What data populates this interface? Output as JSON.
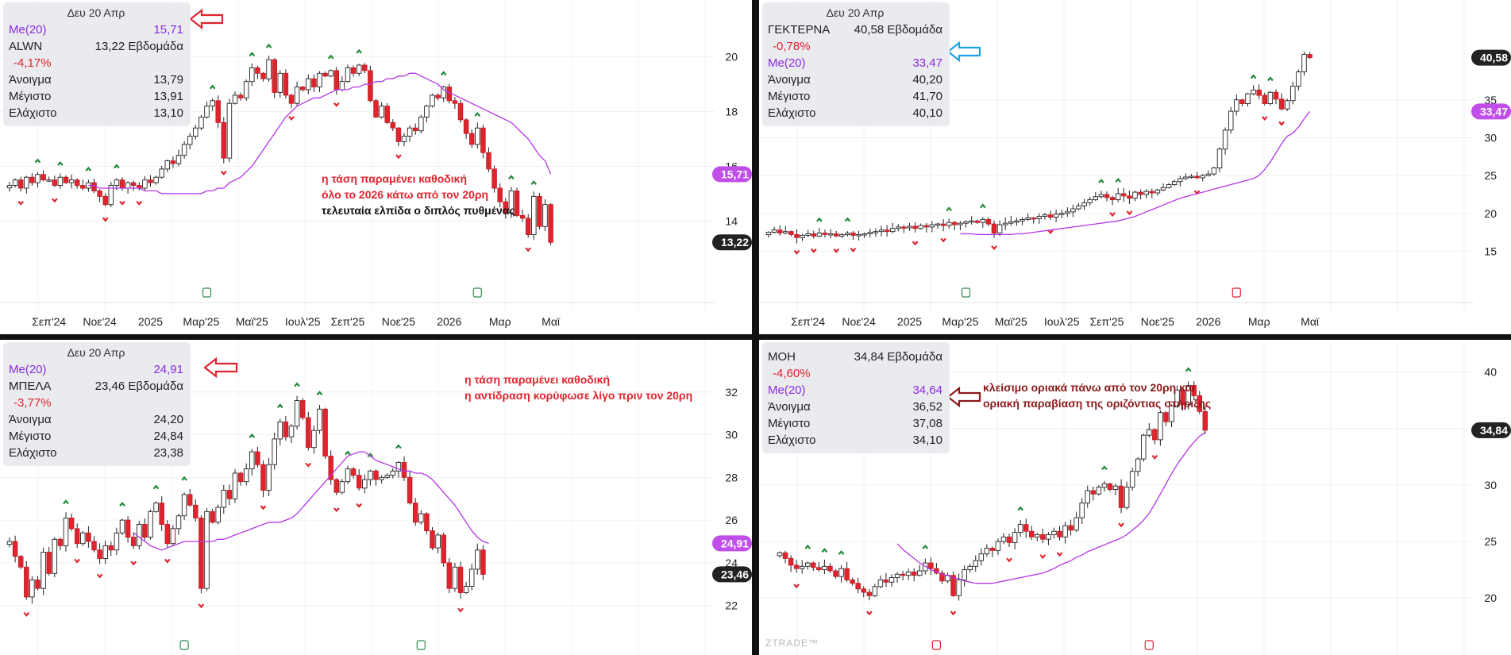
{
  "panels": [
    {
      "date": "Δευ 20 Απρ",
      "symbol": "ALWN",
      "price": "13,22",
      "period": "Εβδομάδα",
      "change": "-4,17%",
      "ma_label": "Me(20)",
      "ma_value": "15,71",
      "open_label": "Άνοιγμα",
      "open": "13,79",
      "high_label": "Μέγιστο",
      "high": "13,91",
      "low_label": "Ελάχιστο",
      "low": "13,10",
      "ma_first": true,
      "arrow_color": "#e0242e",
      "notes": [
        {
          "text": "η τάση παραμένει καθοδική",
          "color": "#e0242e"
        },
        {
          "text": "όλο το 2026 κάτω από τον 20ρη",
          "color": "#e0242e"
        },
        {
          "text": "τελευταία ελπίδα ο διπλός πυθμένας",
          "color": "#111111"
        }
      ],
      "price_tag": "13,22",
      "ma_tag": "15,71"
    },
    {
      "date": "Δευ 20 Απρ",
      "symbol": "ΓΕΚΤΕΡΝΑ",
      "price": "40,58",
      "period": "Εβδομάδα",
      "change": "-0,78%",
      "ma_label": "Me(20)",
      "ma_value": "33,47",
      "open_label": "Άνοιγμα",
      "open": "40,20",
      "high_label": "Μέγιστο",
      "high": "41,70",
      "low_label": "Ελάχιστο",
      "low": "40,10",
      "ma_first": false,
      "arrow_color": "#1aa3e8",
      "notes": [],
      "price_tag": "40,58",
      "ma_tag": "33,47"
    },
    {
      "date": "Δευ 20 Απρ",
      "symbol": "ΜΠΕΛΑ",
      "price": "23,46",
      "period": "Εβδομάδα",
      "change": "-3,77%",
      "ma_label": "Me(20)",
      "ma_value": "24,91",
      "open_label": "Άνοιγμα",
      "open": "24,20",
      "high_label": "Μέγιστο",
      "high": "24,84",
      "low_label": "Ελάχιστο",
      "low": "23,38",
      "ma_first": true,
      "arrow_color": "#e0242e",
      "notes": [
        {
          "text": "η τάση παραμένει καθοδική",
          "color": "#e0242e"
        },
        {
          "text": "η αντίδραση κορύφωσε λίγο πριν τον 20ρη",
          "color": "#e0242e"
        }
      ],
      "price_tag": "23,46",
      "ma_tag": "24,91"
    },
    {
      "date": "",
      "symbol": "ΜΟΗ",
      "price": "34,84",
      "period": "Εβδομάδα",
      "change": "-4,60%",
      "ma_label": "Me(20)",
      "ma_value": "34,64",
      "open_label": "Άνοιγμα",
      "open": "36,52",
      "high_label": "Μέγιστο",
      "high": "37,08",
      "low_label": "Ελάχιστο",
      "low": "34,10",
      "ma_first": false,
      "arrow_color": "#8b1a1a",
      "notes": [
        {
          "text": "κλείσιμο οριακά πάνω από τον 20ρη και",
          "color": "#8b1a1a"
        },
        {
          "text": "οριακή παραβίαση της οριζόντιας στήριξης",
          "color": "#8b1a1a"
        }
      ],
      "price_tag": "34,84",
      "ma_tag": ""
    }
  ],
  "watermark": "ZTRADE™",
  "chart_data": [
    {
      "type": "candlestick",
      "symbol": "ALWN",
      "period": "weekly",
      "ylim": [
        12.5,
        21.5
      ],
      "yticks": [
        14,
        16,
        18,
        20
      ],
      "x_labels": [
        "Σεπ'24",
        "Νοε'24",
        "2025",
        "Μαρ'25",
        "Μαϊ'25",
        "Ιουλ'25",
        "Σεπ'25",
        "Νοε'25",
        "2026",
        "Μαρ",
        "Μαϊ"
      ],
      "x_label_index": [
        7,
        16,
        25,
        34,
        43,
        52,
        60,
        69,
        78,
        87,
        96
      ],
      "closes": [
        15.3,
        15.5,
        15.2,
        15.6,
        15.4,
        15.7,
        15.5,
        15.5,
        15.3,
        15.6,
        15.4,
        15.5,
        15.3,
        15.2,
        15.4,
        15.1,
        14.9,
        14.6,
        15.3,
        15.5,
        15.2,
        15.4,
        15.3,
        15.2,
        15.5,
        15.4,
        15.6,
        15.9,
        16.2,
        16.1,
        16.4,
        16.8,
        17.1,
        17.4,
        17.8,
        18.2,
        18.4,
        17.6,
        16.3,
        18.3,
        18.6,
        18.5,
        19.1,
        19.6,
        19.4,
        19.2,
        19.9,
        18.7,
        19.4,
        18.6,
        18.3,
        18.9,
        18.8,
        19.2,
        18.9,
        19.4,
        19.3,
        19.5,
        18.8,
        19.1,
        19.6,
        19.4,
        19.7,
        19.5,
        18.4,
        17.8,
        18.2,
        17.6,
        17.4,
        16.9,
        17.1,
        17.4,
        17.3,
        17.8,
        18.2,
        18.6,
        18.5,
        18.9,
        18.4,
        18.3,
        17.7,
        17.2,
        16.8,
        17.4,
        16.5,
        15.9,
        15.2,
        14.7,
        14.3,
        15.1,
        14.2,
        14.1,
        13.5,
        14.9,
        13.8,
        14.6,
        13.22
      ],
      "ma20": [
        15.3,
        15.3,
        15.2,
        15.2,
        15.2,
        15.2,
        15.2,
        15.2,
        15.2,
        15.2,
        15.1,
        15.1,
        15.1,
        15.0,
        15.0,
        15.0,
        15.0,
        15.0,
        15.0,
        15.0,
        15.0,
        15.1,
        15.1,
        15.2,
        15.2,
        15.4,
        15.5,
        15.6,
        15.8,
        16.0,
        16.3,
        16.6,
        16.9,
        17.2,
        17.5,
        17.8,
        18.0,
        18.2,
        18.3,
        18.4,
        18.5,
        18.5,
        18.6,
        18.7,
        18.8,
        18.8,
        18.8,
        18.9,
        18.9,
        19.0,
        19.0,
        19.1,
        19.1,
        19.2,
        19.2,
        19.3,
        19.3,
        19.4,
        19.4,
        19.3,
        19.2,
        19.1,
        19.0,
        18.8,
        18.7,
        18.6,
        18.5,
        18.4,
        18.3,
        18.2,
        18.1,
        18.0,
        17.9,
        17.8,
        17.7,
        17.6,
        17.4,
        17.2,
        17.0,
        16.7,
        16.4,
        16.2,
        15.71
      ],
      "ma_start_index": 14
    },
    {
      "type": "candlestick",
      "symbol": "ΓΕΚΤΕΡΝΑ",
      "period": "weekly",
      "ylim": [
        12,
        44
      ],
      "yticks": [
        15,
        20,
        25,
        30,
        35
      ],
      "x_labels": [
        "Σεπ'24",
        "Νοε'24",
        "2025",
        "Μαρ'25",
        "Μαϊ'25",
        "Ιουλ'25",
        "Σεπ'25",
        "Νοε'25",
        "2026",
        "Μαρ",
        "Μαϊ"
      ],
      "x_label_index": [
        7,
        16,
        25,
        34,
        43,
        52,
        60,
        69,
        78,
        87,
        96
      ],
      "closes": [
        17.5,
        17.8,
        17.4,
        17.6,
        17.2,
        16.8,
        17.1,
        17.3,
        17.0,
        17.4,
        17.2,
        17.3,
        17.0,
        17.2,
        17.4,
        17.1,
        17.2,
        17.3,
        17.5,
        17.6,
        17.8,
        17.6,
        18.0,
        18.2,
        18.1,
        18.3,
        18.0,
        18.4,
        18.2,
        18.5,
        18.6,
        18.4,
        18.8,
        18.5,
        18.7,
        18.9,
        19.0,
        18.8,
        19.2,
        18.6,
        17.4,
        18.5,
        18.7,
        18.9,
        19.0,
        19.2,
        19.4,
        19.3,
        19.6,
        19.8,
        19.5,
        19.9,
        20.0,
        20.2,
        20.6,
        21.0,
        21.4,
        21.8,
        22.2,
        22.5,
        22.1,
        21.8,
        22.6,
        22.3,
        22.0,
        22.8,
        22.5,
        22.9,
        22.7,
        23.1,
        23.4,
        23.8,
        24.2,
        24.6,
        24.8,
        24.9,
        24.7,
        25.0,
        25.2,
        26.0,
        28.5,
        31.0,
        33.5,
        35.0,
        34.5,
        35.8,
        36.3,
        35.6,
        34.5,
        36.0,
        35.1,
        33.8,
        34.9,
        36.8,
        38.7,
        41.0,
        40.58
      ],
      "ma20": [
        17.3,
        17.3,
        17.3,
        17.2,
        17.2,
        17.2,
        17.2,
        17.2,
        17.2,
        17.2,
        17.3,
        17.3,
        17.4,
        17.5,
        17.6,
        17.7,
        17.8,
        17.9,
        18.0,
        18.1,
        18.2,
        18.3,
        18.4,
        18.5,
        18.6,
        18.7,
        18.8,
        18.9,
        19.0,
        19.2,
        19.4,
        19.6,
        19.9,
        20.2,
        20.5,
        20.8,
        21.1,
        21.4,
        21.7,
        22.0,
        22.2,
        22.4,
        22.6,
        22.8,
        23.0,
        23.2,
        23.4,
        23.6,
        23.8,
        24.0,
        24.2,
        24.4,
        24.6,
        25.0,
        25.8,
        26.8,
        28.0,
        29.2,
        30.2,
        30.6,
        31.4,
        32.5,
        33.47
      ],
      "ma_start_index": 34
    },
    {
      "type": "candlestick",
      "symbol": "ΜΠΕΛΑ",
      "period": "weekly",
      "ylim": [
        20.5,
        34
      ],
      "yticks": [
        22,
        24,
        26,
        28,
        30,
        32
      ],
      "x_labels": [],
      "x_label_index": [],
      "closes": [
        25.0,
        24.3,
        23.8,
        22.4,
        23.2,
        22.8,
        24.5,
        23.5,
        25.1,
        24.8,
        26.1,
        25.6,
        24.9,
        25.4,
        25.0,
        24.6,
        24.2,
        24.8,
        24.6,
        25.4,
        26.0,
        25.2,
        24.8,
        25.8,
        25.2,
        26.4,
        26.8,
        25.8,
        24.9,
        25.6,
        26.2,
        27.2,
        26.7,
        26.1,
        22.8,
        26.4,
        25.9,
        26.6,
        27.4,
        27.0,
        28.2,
        27.8,
        28.4,
        29.2,
        28.6,
        27.4,
        28.6,
        29.8,
        30.6,
        29.9,
        30.4,
        31.6,
        30.8,
        29.4,
        30.2,
        31.2,
        29.0,
        27.9,
        27.3,
        27.8,
        28.4,
        28.1,
        27.5,
        27.9,
        28.3,
        27.9,
        28.0,
        28.1,
        28.3,
        28.7,
        28.0,
        26.8,
        25.9,
        26.3,
        25.5,
        24.7,
        25.3,
        24.0,
        22.8,
        23.8,
        22.6,
        22.9,
        23.7,
        24.6,
        23.46
      ],
      "ma20": [
        25.4,
        25.2,
        25.0,
        24.8,
        24.7,
        24.6,
        24.7,
        24.8,
        24.9,
        25.0,
        25.0,
        25.0,
        25.0,
        25.0,
        25.0,
        25.1,
        25.1,
        25.2,
        25.3,
        25.4,
        25.5,
        25.6,
        25.7,
        25.8,
        25.9,
        25.9,
        25.9,
        26.0,
        26.1,
        26.3,
        26.6,
        26.9,
        27.2,
        27.5,
        27.8,
        28.1,
        28.4,
        28.7,
        29.0,
        29.1,
        29.2,
        29.2,
        29.0,
        28.8,
        28.7,
        28.6,
        28.5,
        28.4,
        28.3,
        28.3,
        28.2,
        28.2,
        28.1,
        27.9,
        27.6,
        27.3,
        27.0,
        26.7,
        26.3,
        25.9,
        25.5,
        25.2,
        25.0,
        24.91
      ],
      "ma_start_index": 22
    },
    {
      "type": "candlestick",
      "symbol": "ΜΟΗ",
      "period": "weekly",
      "ylim": [
        16.5,
        42
      ],
      "yticks": [
        20,
        25,
        30,
        35,
        40
      ],
      "x_labels": [],
      "x_label_index": [],
      "closes": [
        24.0,
        23.5,
        22.9,
        22.6,
        22.8,
        23.1,
        22.7,
        22.5,
        22.8,
        22.4,
        21.9,
        22.6,
        21.6,
        21.3,
        20.8,
        20.5,
        20.2,
        21.0,
        21.6,
        21.4,
        21.8,
        22.1,
        22.0,
        22.3,
        22.0,
        22.4,
        23.1,
        22.6,
        22.2,
        21.5,
        22.0,
        20.2,
        21.6,
        22.5,
        22.8,
        23.3,
        23.9,
        24.4,
        24.2,
        25.0,
        25.4,
        24.9,
        25.8,
        26.5,
        25.9,
        25.4,
        25.6,
        25.2,
        25.6,
        25.9,
        25.4,
        26.4,
        26.0,
        27.1,
        28.4,
        29.5,
        29.2,
        29.8,
        30.1,
        29.6,
        29.9,
        28.0,
        29.8,
        31.2,
        32.3,
        34.4,
        34.9,
        34.0,
        36.4,
        35.6,
        37.0,
        38.4,
        37.1,
        38.8,
        37.9,
        36.5,
        34.84
      ],
      "ma20": [
        24.8,
        24.3,
        23.9,
        23.5,
        23.1,
        22.8,
        22.5,
        22.3,
        22.1,
        22.0,
        21.8,
        21.7,
        21.5,
        21.4,
        21.3,
        21.3,
        21.3,
        21.3,
        21.4,
        21.5,
        21.6,
        21.7,
        21.8,
        21.9,
        22.0,
        22.1,
        22.2,
        22.4,
        22.6,
        22.9,
        23.1,
        23.3,
        23.6,
        23.8,
        24.1,
        24.3,
        24.5,
        24.7,
        24.9,
        25.1,
        25.3,
        25.6,
        26.0,
        26.4,
        26.9,
        27.5,
        28.3,
        29.2,
        30.1,
        31.0,
        31.8,
        32.5,
        33.2,
        33.8,
        34.3,
        34.64
      ],
      "ma_start_index": 21
    }
  ]
}
